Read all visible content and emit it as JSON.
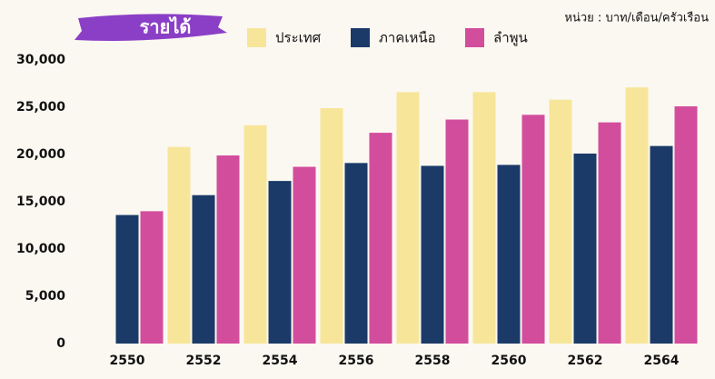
{
  "chart_data": {
    "type": "bar",
    "title": "รายได้",
    "unit_note": "หน่วย : บาท/เดือน/ครัวเรือน",
    "categories": [
      "2550",
      "2552",
      "2554",
      "2556",
      "2558",
      "2560",
      "2562",
      "2564"
    ],
    "series": [
      {
        "name": "ประเทศ",
        "color": "#f7e69a",
        "values": [
          null,
          20800,
          23100,
          24900,
          26600,
          26600,
          25800,
          27100
        ]
      },
      {
        "name": "ภาคเหนือ",
        "color": "#1b3a68",
        "values": [
          13600,
          15700,
          17200,
          19100,
          18800,
          18900,
          20100,
          20900
        ]
      },
      {
        "name": "ลำพูน",
        "color": "#d34d9d",
        "values": [
          14000,
          19900,
          18700,
          22300,
          23700,
          24200,
          23400,
          25100
        ]
      }
    ],
    "ylim": [
      0,
      30000
    ],
    "yticks": [
      0,
      {
        "value": 5000,
        "label": "5,000"
      },
      {
        "value": 10000,
        "label": "10,000"
      },
      {
        "value": 15000,
        "label": "15,000"
      },
      {
        "value": 20000,
        "label": "20,000"
      },
      {
        "value": 25000,
        "label": "25,000"
      },
      {
        "value": 30000,
        "label": "30,000"
      }
    ],
    "grid": false
  }
}
